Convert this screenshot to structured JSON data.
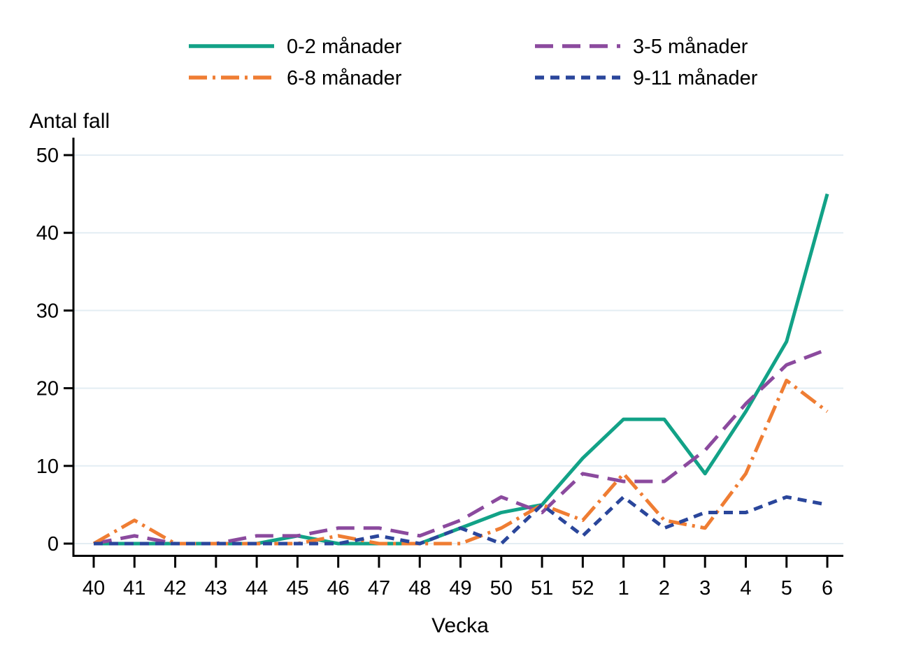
{
  "chart_data": {
    "type": "line",
    "title": "",
    "ylabel": "Antal fall",
    "xlabel": "Vecka",
    "categories": [
      "40",
      "41",
      "42",
      "43",
      "44",
      "45",
      "46",
      "47",
      "48",
      "49",
      "50",
      "51",
      "52",
      "1",
      "2",
      "3",
      "4",
      "5",
      "6"
    ],
    "ylim": [
      0,
      50
    ],
    "yticks": [
      0,
      10,
      20,
      30,
      40,
      50
    ],
    "grid": "horizontal",
    "legend_position": "top",
    "axis_color": "#000000",
    "grid_color": "#e3edf3",
    "series": [
      {
        "name": "0-2 månader",
        "color": "#12a287",
        "dash": "solid",
        "values": [
          0,
          0,
          0,
          0,
          0,
          1,
          0,
          0,
          0,
          2,
          4,
          5,
          11,
          16,
          16,
          9,
          17,
          26,
          45
        ]
      },
      {
        "name": "3-5 månader",
        "color": "#8b4a9e",
        "dash": "long-dash",
        "values": [
          0,
          1,
          0,
          0,
          1,
          1,
          2,
          2,
          1,
          3,
          6,
          4,
          9,
          8,
          8,
          12,
          18,
          23,
          25
        ]
      },
      {
        "name": "6-8 månader",
        "color": "#ef7d33",
        "dash": "dash-dot",
        "values": [
          0,
          3,
          0,
          0,
          0,
          0,
          1,
          0,
          0,
          0,
          2,
          5,
          3,
          9,
          3,
          2,
          9,
          21,
          17
        ]
      },
      {
        "name": "9-11 månader",
        "color": "#2a469b",
        "dash": "dash",
        "values": [
          0,
          0,
          0,
          0,
          0,
          0,
          0,
          1,
          0,
          2,
          0,
          5,
          1,
          6,
          2,
          4,
          4,
          6,
          5
        ]
      }
    ]
  }
}
